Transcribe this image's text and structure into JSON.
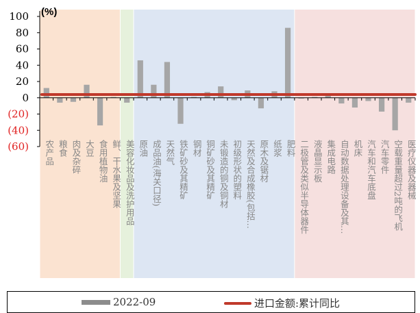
{
  "chart_data": {
    "type": "bar",
    "ylabel": "(%)",
    "ylim": [
      -60,
      100
    ],
    "yticks": [
      100,
      80,
      60,
      40,
      20,
      0,
      -20,
      -40,
      -60
    ],
    "ytick_labels": [
      "100",
      "80",
      "60",
      "40",
      "20",
      "0",
      "(20)",
      "(40)",
      "(60)"
    ],
    "categories": [
      "农产品",
      "粮食",
      "肉及杂碎",
      "大豆",
      "食用植物油",
      "鲜、干水果及坚果",
      "美容化妆品及洗护用品",
      "原油",
      "成品油(海关口径)",
      "天然气",
      "铁矿砂及其精矿",
      "钢材",
      "铜矿砂及其精矿",
      "未锻造的铜及铜材",
      "初级形状的塑料",
      "天然及合成橡胶(包括…",
      "原木及锯材",
      "纸浆",
      "肥料",
      "二极管及类似半导体器件",
      "液晶显示板",
      "集成电路",
      "自动数据处理设备及其…",
      "机床",
      "汽车和汽车底盘",
      "汽车零件",
      "空载重量超过2吨的飞机",
      "医疗仪器及器械"
    ],
    "series": [
      {
        "name": "2022-09",
        "color": "#a6a6a6",
        "values": [
          12,
          -6,
          -5,
          16,
          -34,
          1,
          -6,
          46,
          16,
          44,
          -32,
          1,
          7,
          14,
          -3,
          9,
          -13,
          8,
          86,
          -1,
          1,
          3,
          -7,
          -12,
          -4,
          -17,
          -40,
          -6
        ]
      },
      {
        "name": "进口金额:累计同比",
        "color": "#c0392b",
        "values": [
          4,
          4,
          4,
          4,
          4,
          4,
          4,
          4,
          4,
          4,
          4,
          4,
          4,
          4,
          4,
          4,
          4,
          4,
          4,
          4,
          4,
          4,
          4,
          4,
          4,
          4,
          4,
          4
        ]
      }
    ],
    "bands": [
      {
        "from": 0,
        "to": 5,
        "color": "#fbe3d1"
      },
      {
        "from": 6,
        "to": 6,
        "color": "#e6f1dc"
      },
      {
        "from": 7,
        "to": 18,
        "color": "#dde6f3"
      },
      {
        "from": 19,
        "to": 27,
        "color": "#f6e0df"
      }
    ],
    "legend": {
      "position": "bottom",
      "items": [
        {
          "label": "2022-09",
          "style": "bar"
        },
        {
          "label": "进口金额:累计同比",
          "style": "line"
        }
      ]
    },
    "grid": false
  }
}
